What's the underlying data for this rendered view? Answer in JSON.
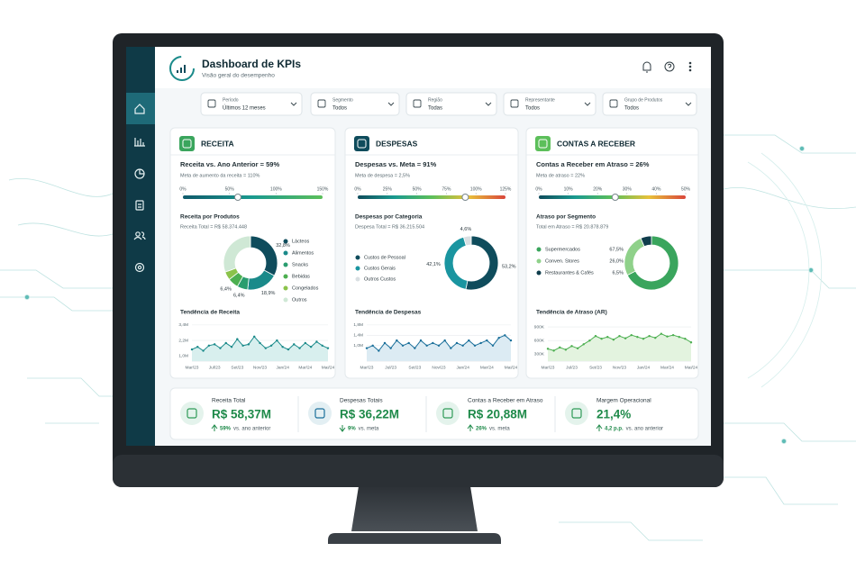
{
  "header": {
    "title": "Dashboard de KPIs",
    "subtitle": "Visão geral do desempenho"
  },
  "filters": [
    {
      "label": "Período",
      "value": "Últimos 12 meses"
    },
    {
      "label": "Segmento",
      "value": "Todos"
    },
    {
      "label": "Região",
      "value": "Todas"
    },
    {
      "label": "Representante",
      "value": "Todos"
    },
    {
      "label": "Grupo de Produtos",
      "value": "Todos"
    }
  ],
  "panels": [
    "RECEITA",
    "DESPESAS",
    "CONTAS A RECEBER"
  ],
  "chart_data": [
    {
      "type": "gauge",
      "title": "Receita vs. Ano Anterior = 59%",
      "subtitle": "Meta de aumento da receita = 110%",
      "value": 59,
      "xlim": [
        0,
        150
      ],
      "xticks": [
        {
          "value": 0,
          "label": "0%"
        },
        {
          "value": 50,
          "label": "50%"
        },
        {
          "value": 100,
          "label": "100%"
        },
        {
          "value": 150,
          "label": "150%"
        }
      ],
      "colors": [
        "#0f5a6b",
        "#1a9a8f",
        "#5cbf5a"
      ]
    },
    {
      "type": "donut",
      "title": "Receita por Produtos",
      "subtitle": "Receita Total = R$ 58.374.448",
      "categories": [
        "Lácteos",
        "Alimentos",
        "Snacks",
        "Bebidas",
        "Congelados",
        "Outros"
      ],
      "values": [
        32.8,
        18.9,
        6.4,
        6.4,
        5.0,
        30.5
      ],
      "value_labels": [
        "32,8%",
        "18,9%",
        "6,4%",
        "6,4%",
        null,
        null
      ],
      "colors": [
        "#0f4c5c",
        "#1a8a8a",
        "#2a9d6f",
        "#4caf50",
        "#8bc34a",
        "#cfe8d5"
      ],
      "label_position": "outside"
    },
    {
      "type": "line",
      "title": "Tendência de Receita",
      "categories": [
        "Mar/23",
        null,
        null,
        null,
        "Jul/23",
        null,
        null,
        null,
        "Set/23",
        null,
        null,
        null,
        "Nov/23",
        null,
        null,
        null,
        "Jan/24",
        null,
        null,
        null,
        "Mar/24",
        null,
        null,
        null,
        "Mai/24"
      ],
      "values": [
        1.5,
        1.7,
        1.4,
        1.8,
        1.9,
        1.6,
        2.0,
        1.7,
        2.3,
        1.8,
        1.9,
        2.5,
        2.0,
        1.6,
        1.8,
        2.2,
        1.7,
        1.5,
        1.9,
        1.6,
        2.0,
        1.7,
        2.1,
        1.8,
        1.6
      ],
      "ylim": [
        0.6,
        3.6
      ],
      "yticks": [
        {
          "value": 1.0,
          "label": "1,0M"
        },
        {
          "value": 2.2,
          "label": "2,2M"
        },
        {
          "value": 3.4,
          "label": "3,4M"
        }
      ],
      "color": "#1a8a8a",
      "fill": "#d8efee",
      "grid": true
    },
    {
      "type": "gauge",
      "title": "Despesas vs. Meta = 91%",
      "subtitle": "Meta de despesa = 2,5%",
      "value": 91,
      "xlim": [
        0,
        125
      ],
      "xticks": [
        {
          "value": 0,
          "label": "0%"
        },
        {
          "value": 25,
          "label": "25%"
        },
        {
          "value": 50,
          "label": "50%"
        },
        {
          "value": 75,
          "label": "75%"
        },
        {
          "value": 100,
          "label": "100%"
        },
        {
          "value": 125,
          "label": "125%"
        }
      ],
      "colors": [
        "#0f4c5c",
        "#1a9a8f",
        "#5cbf5a",
        "#e8c13a",
        "#d9453b"
      ]
    },
    {
      "type": "donut",
      "title": "Despesas por Categoria",
      "subtitle": "Despesa Total = R$ 36.215.504",
      "categories": [
        "Custos de Pessoal",
        "Custos Gerais",
        "Outros Custos"
      ],
      "values": [
        53.2,
        42.1,
        4.6
      ],
      "value_labels": [
        "53,2%",
        "42,1%",
        "4,6%"
      ],
      "colors": [
        "#0f4c5c",
        "#1a95a0",
        "#d9dfe2"
      ],
      "label_position": "outside"
    },
    {
      "type": "line",
      "title": "Tendência de Despesas",
      "categories": [
        "Mar/23",
        null,
        null,
        null,
        "Jul/23",
        null,
        null,
        null,
        "Set/23",
        null,
        null,
        null,
        "Nov/23",
        null,
        null,
        null,
        "Jan/24",
        null,
        null,
        null,
        "Mar/24",
        null,
        null,
        null,
        "Mai/24"
      ],
      "values": [
        0.9,
        1.0,
        0.8,
        1.1,
        0.9,
        1.2,
        1.0,
        1.1,
        0.9,
        1.2,
        1.0,
        1.1,
        1.0,
        1.2,
        0.9,
        1.1,
        1.0,
        1.2,
        1.0,
        1.1,
        1.2,
        1.0,
        1.3,
        1.4,
        1.2
      ],
      "ylim": [
        0.4,
        1.9
      ],
      "yticks": [
        {
          "value": 1.0,
          "label": "1,0M"
        },
        {
          "value": 1.4,
          "label": "1,4M"
        },
        {
          "value": 1.8,
          "label": "1,8M"
        }
      ],
      "color": "#1a6f9a",
      "fill": "#dcebf3",
      "grid": true
    },
    {
      "type": "gauge",
      "title": "Contas a Receber em Atraso = 26%",
      "subtitle": "Meta de atraso = 22%",
      "value": 26,
      "xlim": [
        0,
        50
      ],
      "xticks": [
        {
          "value": 0,
          "label": "0%"
        },
        {
          "value": 10,
          "label": "10%"
        },
        {
          "value": 20,
          "label": "20%"
        },
        {
          "value": 30,
          "label": "30%"
        },
        {
          "value": 40,
          "label": "40%"
        },
        {
          "value": 50,
          "label": "50%"
        }
      ],
      "colors": [
        "#0f4c5c",
        "#1a9a8f",
        "#5cbf5a",
        "#e8c13a",
        "#d9453b"
      ]
    },
    {
      "type": "donut",
      "title": "Atraso por Segmento",
      "subtitle": "Total em Atraso = R$ 20.878.879",
      "categories": [
        "Supermercados",
        "Conven. Stores",
        "Restaurantes & Cafés"
      ],
      "values": [
        67.5,
        26.0,
        6.5
      ],
      "value_labels": [
        "67,5%",
        "26,0%",
        "6,5%"
      ],
      "colors": [
        "#3aa55d",
        "#8fd18a",
        "#0f3d4c"
      ],
      "label_position": "legend"
    },
    {
      "type": "line",
      "title": "Tendência de Atraso (AR)",
      "categories": [
        "Mar/23",
        null,
        null,
        null,
        "Jul/23",
        null,
        null,
        null,
        "Set/23",
        null,
        null,
        null,
        "Nov/23",
        null,
        null,
        null,
        "Jan/24",
        null,
        null,
        null,
        "Mar/24",
        null,
        null,
        null,
        "Mai/24"
      ],
      "values": [
        420000,
        380000,
        450000,
        400000,
        480000,
        430000,
        520000,
        600000,
        700000,
        640000,
        680000,
        620000,
        700000,
        650000,
        720000,
        680000,
        640000,
        700000,
        660000,
        750000,
        690000,
        720000,
        680000,
        640000,
        560000
      ],
      "ylim": [
        150000,
        1000000
      ],
      "yticks": [
        {
          "value": 300000,
          "label": "300K"
        },
        {
          "value": 600000,
          "label": "600K"
        },
        {
          "value": 900000,
          "label": "900K"
        }
      ],
      "color": "#4caf50",
      "fill": "#e3f3df",
      "grid": true
    }
  ],
  "kpis": [
    {
      "label": "Receita Total",
      "value": "R$ 58,37M",
      "delta": "59%",
      "comparison": "vs. ano anterior",
      "direction": "up"
    },
    {
      "label": "Despesas Totais",
      "value": "R$ 36,22M",
      "delta": "9%",
      "comparison": "vs. meta",
      "direction": "down"
    },
    {
      "label": "Contas a Receber em Atraso",
      "value": "R$ 20,88M",
      "delta": "26%",
      "comparison": "vs. meta",
      "direction": "up"
    },
    {
      "label": "Margem Operacional",
      "value": "21,4%",
      "delta": "4,2 p.p.",
      "comparison": "vs. ano anterior",
      "direction": "up"
    }
  ]
}
